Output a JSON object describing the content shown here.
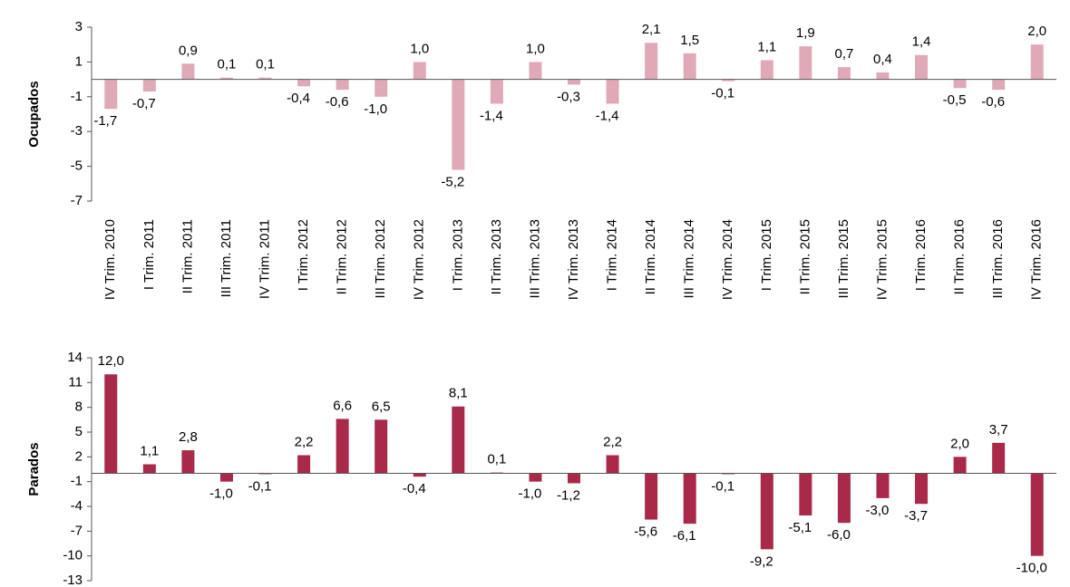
{
  "chart_data": [
    {
      "type": "bar",
      "ylabel": "Ocupados",
      "color": "#dfa9b7",
      "categories": [
        "IV Trim. 2010",
        "I Trim. 2011",
        "II Trim. 2011",
        "III Trim. 2011",
        "IV Trim. 2011",
        "I Trim. 2012",
        "II Trim. 2012",
        "III Trim. 2012",
        "IV Trim. 2012",
        "I Trim. 2013",
        "II Trim. 2013",
        "III Trim. 2013",
        "IV Trim. 2013",
        "I Trim. 2014",
        "II Trim. 2014",
        "III Trim. 2014",
        "IV Trim. 2014",
        "I Trim. 2015",
        "II Trim. 2015",
        "III Trim. 2015",
        "IV Trim. 2015",
        "I Trim. 2016",
        "II Trim. 2016",
        "III Trim. 2016",
        "IV Trim. 2016"
      ],
      "values": [
        -1.7,
        -0.7,
        0.9,
        0.1,
        0.1,
        -0.4,
        -0.6,
        -1.0,
        1.0,
        -5.2,
        -1.4,
        1.0,
        -0.3,
        -1.4,
        2.1,
        1.5,
        -0.1,
        1.1,
        1.9,
        0.7,
        0.4,
        1.4,
        -0.5,
        -0.6,
        2.0
      ],
      "value_labels": [
        "-1,7",
        "-0,7",
        "0,9",
        "0,1",
        "0,1",
        "-0,4",
        "-0,6",
        "-1,0",
        "1,0",
        "-5,2",
        "-1,4",
        "1,0",
        "-0,3",
        "-1,4",
        "2,1",
        "1,5",
        "-0,1",
        "1,1",
        "1,9",
        "0,7",
        "0,4",
        "1,4",
        "-0,5",
        "-0,6",
        "2,0"
      ],
      "ylim": [
        -7,
        3
      ],
      "yticks": [
        -7,
        -5,
        -3,
        -1,
        1,
        3
      ]
    },
    {
      "type": "bar",
      "ylabel": "Parados",
      "color": "#a8294a",
      "values": [
        12.0,
        1.1,
        2.8,
        -1.0,
        -0.1,
        2.2,
        6.6,
        6.5,
        -0.4,
        8.1,
        0.1,
        -1.0,
        -1.2,
        2.2,
        -5.6,
        -6.1,
        -0.1,
        -9.2,
        -5.1,
        -6.0,
        -3.0,
        -3.7,
        2.0,
        3.7,
        -10.0
      ],
      "value_labels": [
        "12,0",
        "1,1",
        "2,8",
        "-1,0",
        "-0,1",
        "2,2",
        "6,6",
        "6,5",
        "-0,4",
        "8,1",
        "0,1",
        "-1,0",
        "-1,2",
        "2,2",
        "-5,6",
        "-6,1",
        "-0,1",
        "-9,2",
        "-5,1",
        "-6,0",
        "-3,0",
        "-3,7",
        "2,0",
        "3,7",
        "-10,0"
      ],
      "ylim": [
        -13,
        14
      ],
      "yticks": [
        -13,
        -10,
        -7,
        -4,
        -1,
        2,
        5,
        8,
        11,
        14
      ]
    }
  ]
}
